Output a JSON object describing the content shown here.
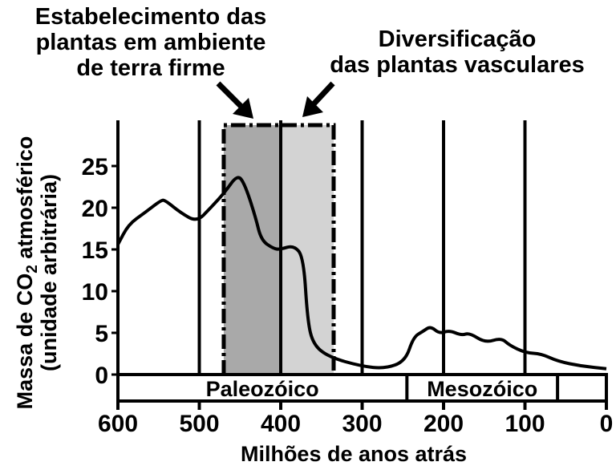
{
  "chart_data": {
    "type": "line",
    "xlabel": "Milhões de anos atrás",
    "ylabel_line1": "Massa de CO",
    "ylabel_sub": "2",
    "ylabel_line1_end": " atmosférico",
    "ylabel_line2": "(unidade arbitrária)",
    "xlim": [
      600,
      0
    ],
    "ylim": [
      0,
      30
    ],
    "x_ticks": [
      600,
      500,
      400,
      300,
      200,
      100,
      0
    ],
    "y_ticks": [
      0,
      5,
      10,
      15,
      20,
      25
    ],
    "vertical_gridlines": [
      500,
      400,
      300,
      200,
      100
    ],
    "series": [
      {
        "x": [
          600,
          587,
          567,
          547,
          542,
          523,
          503,
          487,
          469,
          453,
          444,
          431,
          424,
          409,
          401,
          384,
          372,
          367,
          360,
          341,
          301,
          272,
          247,
          237,
          225,
          216,
          205,
          193,
          178,
          168,
          149,
          129,
          119,
          99,
          80,
          60,
          30,
          0
        ],
        "y": [
          15.6,
          18,
          19.4,
          20.9,
          20.9,
          19.4,
          18.3,
          19.9,
          21.8,
          24,
          22.8,
          18.9,
          16.1,
          15.1,
          15,
          15.5,
          14.1,
          6.4,
          3.6,
          2.1,
          1,
          0.7,
          1.6,
          4.5,
          5.2,
          5.8,
          4.9,
          5.3,
          4.7,
          5,
          3.8,
          4.4,
          3.5,
          2.6,
          2.5,
          1.6,
          1,
          0.7
        ]
      }
    ],
    "shaded_regions": [
      {
        "from": 470,
        "to": 400,
        "color": "#a9a9a9",
        "label": [
          "Estabelecimento das",
          "plantas em ambiente",
          "de terra firme"
        ]
      },
      {
        "from": 400,
        "to": 335,
        "color": "#d3d3d3",
        "label": [
          "Diversificação",
          "das plantas vasculares"
        ]
      }
    ],
    "eras": [
      {
        "name": "Paleozóico",
        "from": 600,
        "to": 245
      },
      {
        "name": "Mesozóico",
        "from": 245,
        "to": 60
      },
      {
        "name": "",
        "from": 60,
        "to": 0
      }
    ]
  }
}
